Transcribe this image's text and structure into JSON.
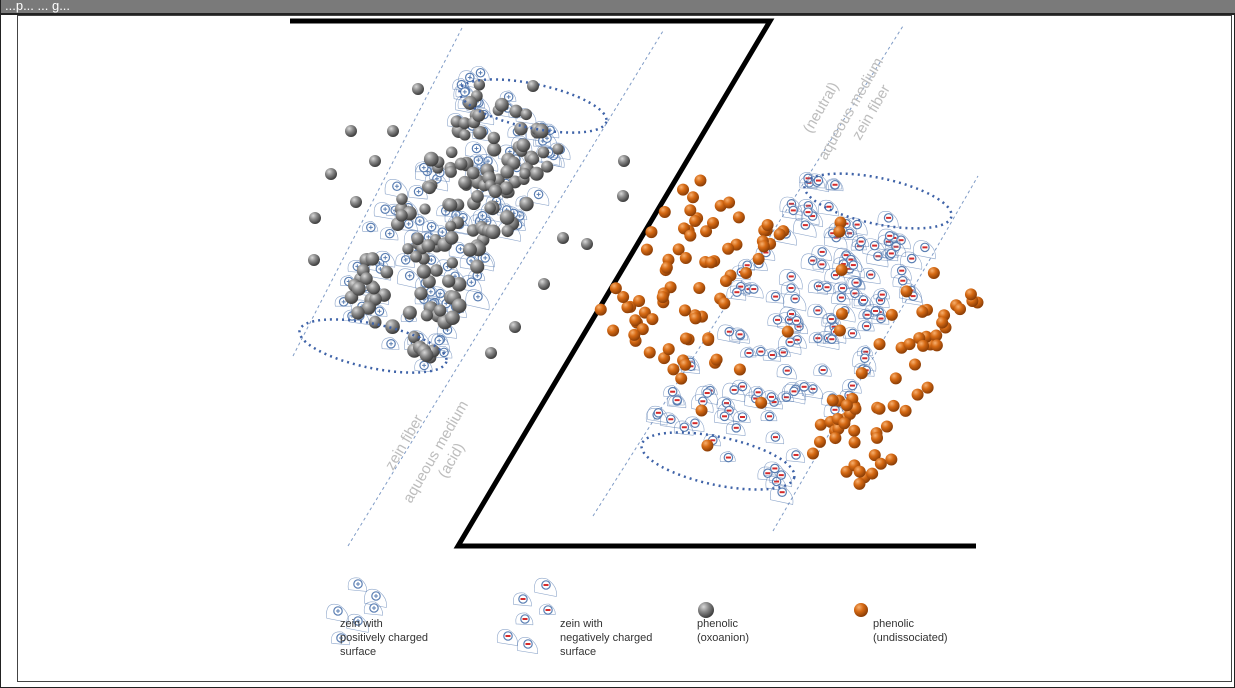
{
  "window": {
    "title": "...p... ... g..."
  },
  "labels": {
    "left_fiber": "zein fiber",
    "left_medium_1": "aqueous medium",
    "left_medium_2": "(acid)",
    "right_medium_1": "(neutral)",
    "right_medium_2": "aqueous medium",
    "right_fiber": "zein fiber"
  },
  "legend": [
    {
      "id": "pos",
      "line1": "zein with",
      "line2": "positively charged",
      "line3": "surface"
    },
    {
      "id": "neg",
      "line1": "zein with",
      "line2": "negatively charged",
      "line3": "surface"
    },
    {
      "id": "grey",
      "line1": "phenolic",
      "line2": "(oxoanion)"
    },
    {
      "id": "orange",
      "line1": "phenolic",
      "line2": "(undissociated)"
    }
  ],
  "colors": {
    "grey_sphere": "#6e6e6e",
    "orange_sphere": "#c85f0e",
    "zein_outline": "#5b7fb3",
    "dotted": "#3f63a8",
    "neg_mark": "#d42a2a",
    "label_grey": "#bdbdbd"
  }
}
